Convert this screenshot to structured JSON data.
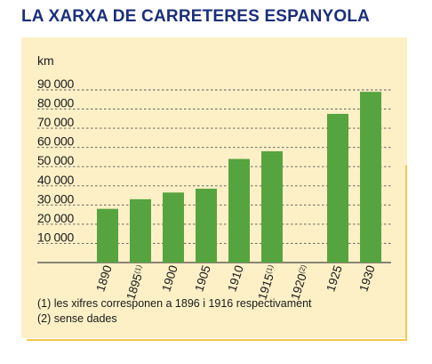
{
  "chart_data": {
    "type": "bar",
    "title": "LA XARXA DE CARRETERES ESPANYOLA",
    "ylabel": "km",
    "xlabel": "",
    "categories": [
      "1890",
      "1895",
      "1900",
      "1905",
      "1910",
      "1915",
      "1920",
      "1925",
      "1930"
    ],
    "category_notes": [
      "",
      "(1)",
      "",
      "",
      "",
      "(1)",
      "(2)",
      "",
      ""
    ],
    "values": [
      28000,
      33000,
      36500,
      38500,
      54000,
      58000,
      null,
      77500,
      89000
    ],
    "ylim": [
      0,
      90000
    ],
    "yticks": [
      10000,
      20000,
      30000,
      40000,
      50000,
      60000,
      70000,
      80000,
      90000
    ],
    "ytick_labels": [
      "10 000",
      "20 000",
      "30 000",
      "40 000",
      "50 000",
      "60 000",
      "70 000",
      "80 000",
      "90 000"
    ],
    "grid": true,
    "colors": {
      "bar": "#56a43f",
      "title": "#1b2f7a",
      "panel": "#fdf0c7",
      "accent": "#f4c64d"
    }
  },
  "footnotes": [
    "(1) les xifres corresponen a 1896 i 1916 respectivament",
    "(2) sense dades"
  ]
}
